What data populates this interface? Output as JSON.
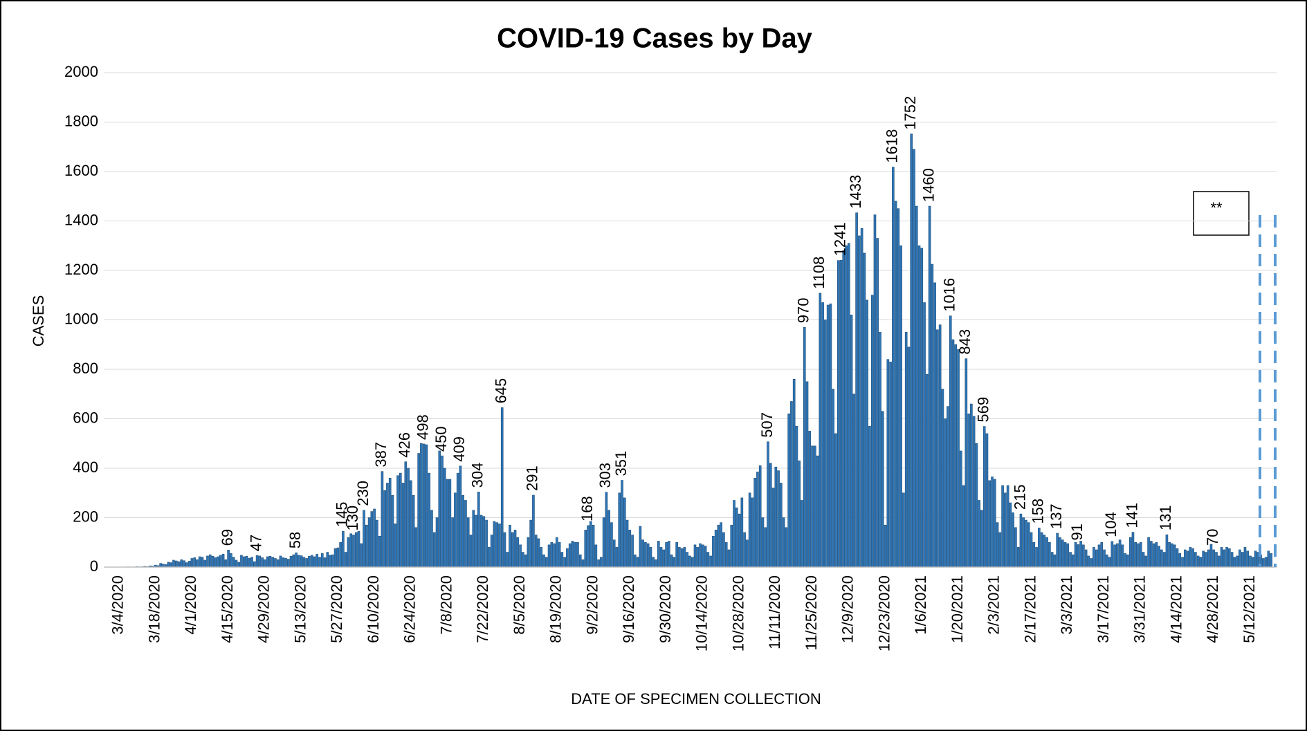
{
  "chart_data": {
    "type": "bar",
    "title": "COVID-19 Cases by Day",
    "x_label": "DATE OF SPECIMEN COLLECTION",
    "y_label": "CASES",
    "annotation": "**",
    "color": "#2e75b6",
    "ylim": [
      0,
      2000
    ],
    "yticks": [
      0,
      200,
      400,
      600,
      800,
      1000,
      1200,
      1400,
      1600,
      1800,
      2000
    ],
    "grid": true,
    "categories": [
      "3/4/2020",
      null,
      null,
      null,
      null,
      null,
      null,
      null,
      null,
      null,
      null,
      null,
      null,
      null,
      "3/18/2020",
      null,
      null,
      null,
      null,
      null,
      null,
      null,
      null,
      null,
      null,
      null,
      null,
      null,
      "4/1/2020",
      null,
      null,
      null,
      null,
      null,
      null,
      null,
      null,
      null,
      null,
      null,
      null,
      null,
      "4/15/2020",
      null,
      null,
      null,
      null,
      null,
      null,
      null,
      null,
      null,
      null,
      null,
      null,
      null,
      "4/29/2020",
      null,
      null,
      null,
      null,
      null,
      null,
      null,
      null,
      null,
      null,
      null,
      null,
      null,
      "5/13/2020",
      null,
      null,
      null,
      null,
      null,
      null,
      null,
      null,
      null,
      null,
      null,
      null,
      null,
      "5/27/2020",
      null,
      null,
      null,
      null,
      null,
      null,
      null,
      null,
      null,
      null,
      null,
      null,
      null,
      "6/10/2020",
      null,
      null,
      null,
      null,
      null,
      null,
      null,
      null,
      null,
      null,
      null,
      null,
      null,
      "6/24/2020",
      null,
      null,
      null,
      null,
      null,
      null,
      null,
      null,
      null,
      null,
      null,
      null,
      null,
      "7/8/2020",
      null,
      null,
      null,
      null,
      null,
      null,
      null,
      null,
      null,
      null,
      null,
      null,
      null,
      "7/22/2020",
      null,
      null,
      null,
      null,
      null,
      null,
      null,
      null,
      null,
      null,
      null,
      null,
      null,
      "8/5/2020",
      null,
      null,
      null,
      null,
      null,
      null,
      null,
      null,
      null,
      null,
      null,
      null,
      null,
      "8/19/2020",
      null,
      null,
      null,
      null,
      null,
      null,
      null,
      null,
      null,
      null,
      null,
      null,
      null,
      "9/2/2020",
      null,
      null,
      null,
      null,
      null,
      null,
      null,
      null,
      null,
      null,
      null,
      null,
      null,
      "9/16/2020",
      null,
      null,
      null,
      null,
      null,
      null,
      null,
      null,
      null,
      null,
      null,
      null,
      null,
      "9/30/2020",
      null,
      null,
      null,
      null,
      null,
      null,
      null,
      null,
      null,
      null,
      null,
      null,
      null,
      "10/14/2020",
      null,
      null,
      null,
      null,
      null,
      null,
      null,
      null,
      null,
      null,
      null,
      null,
      null,
      "10/28/2020",
      null,
      null,
      null,
      null,
      null,
      null,
      null,
      null,
      null,
      null,
      null,
      null,
      null,
      "11/11/2020",
      null,
      null,
      null,
      null,
      null,
      null,
      null,
      null,
      null,
      null,
      null,
      null,
      null,
      "11/25/2020",
      null,
      null,
      null,
      null,
      null,
      null,
      null,
      null,
      null,
      null,
      null,
      null,
      null,
      "12/9/2020",
      null,
      null,
      null,
      null,
      null,
      null,
      null,
      null,
      null,
      null,
      null,
      null,
      null,
      "12/23/2020",
      null,
      null,
      null,
      null,
      null,
      null,
      null,
      null,
      null,
      null,
      null,
      null,
      null,
      "1/6/2021",
      null,
      null,
      null,
      null,
      null,
      null,
      null,
      null,
      null,
      null,
      null,
      null,
      null,
      "1/20/2021",
      null,
      null,
      null,
      null,
      null,
      null,
      null,
      null,
      null,
      null,
      null,
      null,
      null,
      "2/3/2021",
      null,
      null,
      null,
      null,
      null,
      null,
      null,
      null,
      null,
      null,
      null,
      null,
      null,
      "2/17/2021",
      null,
      null,
      null,
      null,
      null,
      null,
      null,
      null,
      null,
      null,
      null,
      null,
      null,
      "3/3/2021",
      null,
      null,
      null,
      null,
      null,
      null,
      null,
      null,
      null,
      null,
      null,
      null,
      null,
      "3/17/2021",
      null,
      null,
      null,
      null,
      null,
      null,
      null,
      null,
      null,
      null,
      null,
      null,
      null,
      "3/31/2021",
      null,
      null,
      null,
      null,
      null,
      null,
      null,
      null,
      null,
      null,
      null,
      null,
      null,
      "4/14/2021",
      null,
      null,
      null,
      null,
      null,
      null,
      null,
      null,
      null,
      null,
      null,
      null,
      null,
      "4/28/2021",
      null,
      null,
      null,
      null,
      null,
      null,
      null,
      null,
      null,
      null,
      null,
      null,
      null,
      "5/12/2021",
      null,
      null,
      null,
      null,
      null,
      null,
      null,
      null
    ],
    "values": [
      0,
      0,
      0,
      1,
      1,
      0,
      1,
      2,
      1,
      2,
      3,
      2,
      5,
      4,
      8,
      6,
      15,
      12,
      10,
      20,
      18,
      28,
      25,
      22,
      30,
      26,
      18,
      24,
      35,
      38,
      30,
      42,
      40,
      28,
      45,
      50,
      44,
      38,
      42,
      48,
      52,
      30,
      69,
      55,
      40,
      28,
      20,
      48,
      42,
      44,
      36,
      40,
      22,
      47,
      45,
      38,
      30,
      42,
      44,
      40,
      35,
      30,
      45,
      38,
      36,
      32,
      44,
      50,
      58,
      48,
      46,
      40,
      35,
      44,
      48,
      42,
      52,
      40,
      55,
      38,
      60,
      48,
      50,
      75,
      78,
      100,
      145,
      60,
      120,
      135,
      130,
      140,
      145,
      95,
      230,
      170,
      200,
      225,
      235,
      190,
      125,
      387,
      310,
      340,
      360,
      290,
      175,
      370,
      380,
      340,
      426,
      400,
      350,
      290,
      160,
      460,
      500,
      498,
      495,
      380,
      230,
      140,
      200,
      470,
      450,
      400,
      355,
      355,
      200,
      300,
      380,
      409,
      290,
      270,
      200,
      130,
      230,
      210,
      304,
      210,
      205,
      190,
      80,
      130,
      185,
      180,
      175,
      645,
      140,
      60,
      170,
      140,
      150,
      120,
      90,
      60,
      50,
      120,
      190,
      291,
      130,
      115,
      80,
      50,
      40,
      90,
      100,
      95,
      120,
      100,
      60,
      40,
      75,
      95,
      105,
      100,
      100,
      50,
      30,
      150,
      168,
      185,
      170,
      90,
      30,
      40,
      200,
      303,
      230,
      180,
      110,
      80,
      300,
      351,
      280,
      190,
      150,
      130,
      50,
      40,
      165,
      110,
      100,
      95,
      80,
      40,
      30,
      105,
      80,
      70,
      100,
      105,
      50,
      40,
      100,
      80,
      75,
      80,
      60,
      45,
      40,
      90,
      80,
      95,
      90,
      85,
      60,
      45,
      125,
      150,
      170,
      180,
      140,
      100,
      70,
      170,
      270,
      240,
      215,
      280,
      140,
      110,
      300,
      280,
      360,
      385,
      410,
      200,
      160,
      507,
      420,
      320,
      405,
      390,
      340,
      200,
      160,
      620,
      670,
      760,
      570,
      430,
      270,
      970,
      750,
      550,
      490,
      490,
      450,
      1108,
      1070,
      1000,
      1060,
      1065,
      720,
      540,
      1240,
      1241,
      1280,
      1300,
      1310,
      1020,
      700,
      1433,
      1340,
      1370,
      1270,
      1080,
      570,
      1100,
      1425,
      1330,
      950,
      630,
      170,
      840,
      830,
      1618,
      1480,
      1450,
      1300,
      300,
      950,
      890,
      1752,
      1690,
      1460,
      1300,
      1290,
      1070,
      780,
      1460,
      1225,
      1150,
      960,
      980,
      720,
      600,
      650,
      1016,
      920,
      900,
      880,
      470,
      330,
      843,
      620,
      660,
      610,
      500,
      270,
      230,
      569,
      540,
      350,
      365,
      355,
      180,
      140,
      330,
      300,
      330,
      260,
      220,
      160,
      80,
      215,
      200,
      190,
      180,
      140,
      100,
      80,
      158,
      140,
      130,
      120,
      100,
      60,
      50,
      137,
      120,
      110,
      100,
      95,
      60,
      50,
      100,
      91,
      105,
      90,
      70,
      45,
      35,
      80,
      70,
      90,
      100,
      70,
      50,
      40,
      104,
      90,
      95,
      110,
      90,
      55,
      50,
      120,
      141,
      100,
      95,
      100,
      60,
      45,
      120,
      105,
      95,
      100,
      85,
      70,
      60,
      131,
      100,
      95,
      90,
      75,
      55,
      40,
      70,
      65,
      80,
      75,
      60,
      45,
      40,
      65,
      60,
      70,
      92,
      70,
      60,
      45,
      80,
      70,
      80,
      75,
      60,
      40,
      45,
      70,
      60,
      80,
      65,
      45,
      40,
      65,
      60,
      50,
      35,
      40,
      65,
      55
    ],
    "value_labels": [
      null,
      null,
      null,
      null,
      null,
      null,
      null,
      null,
      null,
      null,
      null,
      null,
      null,
      null,
      null,
      null,
      null,
      null,
      null,
      null,
      null,
      null,
      null,
      null,
      null,
      null,
      null,
      null,
      null,
      null,
      null,
      null,
      null,
      null,
      null,
      null,
      null,
      null,
      null,
      null,
      null,
      null,
      "69",
      null,
      null,
      null,
      null,
      null,
      null,
      null,
      null,
      null,
      null,
      "47",
      null,
      null,
      null,
      null,
      null,
      null,
      null,
      null,
      null,
      null,
      null,
      null,
      null,
      null,
      "58",
      null,
      null,
      null,
      null,
      null,
      null,
      null,
      null,
      null,
      null,
      null,
      null,
      null,
      null,
      null,
      null,
      null,
      "145",
      null,
      null,
      null,
      "130",
      null,
      null,
      null,
      "230",
      null,
      null,
      null,
      null,
      null,
      null,
      "387",
      null,
      null,
      null,
      null,
      null,
      null,
      null,
      null,
      "426",
      null,
      null,
      null,
      null,
      null,
      null,
      "498",
      null,
      null,
      null,
      null,
      null,
      null,
      "450",
      null,
      null,
      null,
      null,
      null,
      null,
      "409",
      null,
      null,
      null,
      null,
      null,
      null,
      "304",
      null,
      null,
      null,
      null,
      null,
      null,
      null,
      null,
      "645",
      null,
      null,
      null,
      null,
      null,
      null,
      null,
      null,
      null,
      null,
      null,
      "291",
      null,
      null,
      null,
      null,
      null,
      null,
      null,
      null,
      null,
      null,
      null,
      null,
      null,
      null,
      null,
      null,
      null,
      null,
      null,
      null,
      "168",
      null,
      null,
      null,
      null,
      null,
      null,
      "303",
      null,
      null,
      null,
      null,
      null,
      "351",
      null,
      null,
      null,
      null,
      null,
      null,
      null,
      null,
      null,
      null,
      null,
      null,
      null,
      null,
      null,
      null,
      null,
      null,
      null,
      null,
      null,
      null,
      null,
      null,
      null,
      null,
      null,
      null,
      null,
      null,
      null,
      null,
      null,
      null,
      null,
      null,
      null,
      null,
      null,
      null,
      null,
      null,
      null,
      null,
      null,
      null,
      null,
      null,
      null,
      null,
      null,
      null,
      null,
      null,
      null,
      "507",
      null,
      null,
      null,
      null,
      null,
      null,
      null,
      null,
      null,
      null,
      null,
      null,
      null,
      "970",
      null,
      null,
      null,
      null,
      null,
      "1108",
      null,
      null,
      null,
      null,
      null,
      null,
      null,
      "1241",
      null,
      null,
      null,
      null,
      null,
      "1433",
      null,
      null,
      null,
      null,
      null,
      null,
      null,
      null,
      null,
      null,
      null,
      null,
      null,
      "1618",
      null,
      null,
      null,
      null,
      null,
      null,
      "1752",
      null,
      null,
      null,
      null,
      null,
      null,
      "1460",
      null,
      null,
      null,
      null,
      null,
      null,
      null,
      "1016",
      null,
      null,
      null,
      null,
      null,
      "843",
      null,
      null,
      null,
      null,
      null,
      null,
      "569",
      null,
      null,
      null,
      null,
      null,
      null,
      null,
      null,
      null,
      null,
      null,
      null,
      null,
      "215",
      null,
      null,
      null,
      null,
      null,
      null,
      "158",
      null,
      null,
      null,
      null,
      null,
      null,
      "137",
      null,
      null,
      null,
      null,
      null,
      null,
      null,
      "91",
      null,
      null,
      null,
      null,
      null,
      null,
      null,
      null,
      null,
      null,
      null,
      null,
      "104",
      null,
      null,
      null,
      null,
      null,
      null,
      null,
      "141",
      null,
      null,
      null,
      null,
      null,
      null,
      null,
      null,
      null,
      null,
      null,
      null,
      "131",
      null,
      null,
      null,
      null,
      null,
      null,
      null,
      null,
      null,
      null,
      null,
      null,
      null,
      null,
      null,
      null,
      null,
      "70",
      null,
      null,
      null,
      null,
      null,
      null,
      null,
      null,
      null,
      null,
      null,
      null,
      null,
      null,
      null,
      null,
      null,
      null,
      null,
      null,
      null,
      null
    ]
  }
}
